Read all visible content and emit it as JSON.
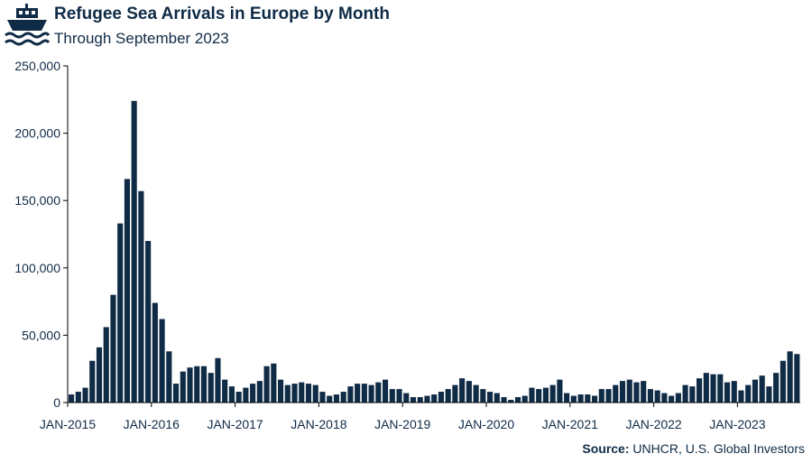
{
  "header": {
    "title": "Refugee Sea Arrivals in Europe by Month",
    "subtitle": "Through September 2023",
    "logo_icon": "ship-on-waves-icon"
  },
  "footer": {
    "source_label": "Source:",
    "source_text": "UNHCR, U.S. Global Investors"
  },
  "colors": {
    "bar": "#0f2b46",
    "text": "#0f2b46",
    "axis": "#000000"
  },
  "chart_data": {
    "type": "bar",
    "title": "Refugee Sea Arrivals in Europe by Month",
    "subtitle": "Through September 2023",
    "xlabel": "",
    "ylabel": "",
    "ylim": [
      0,
      250000
    ],
    "yticks": [
      0,
      50000,
      100000,
      150000,
      200000,
      250000
    ],
    "ytick_labels": [
      "0",
      "50,000",
      "100,000",
      "150,000",
      "200,000",
      "250,000"
    ],
    "xtick_labels": [
      "JAN-2015",
      "JAN-2016",
      "JAN-2017",
      "JAN-2018",
      "JAN-2019",
      "JAN-2020",
      "JAN-2021",
      "JAN-2022",
      "JAN-2023"
    ],
    "grid": false,
    "legend": "none",
    "start_month": "JAN-2015",
    "end_month": "SEP-2023",
    "values": [
      6000,
      8000,
      11000,
      31000,
      41000,
      56000,
      80000,
      133000,
      166000,
      224000,
      157000,
      120000,
      74000,
      62000,
      38000,
      14000,
      23000,
      26000,
      27000,
      27000,
      22000,
      33000,
      17000,
      12000,
      8000,
      11000,
      14000,
      16000,
      27000,
      29000,
      17000,
      13000,
      14000,
      15000,
      14000,
      13000,
      8000,
      5000,
      6000,
      8000,
      12000,
      14000,
      14000,
      13000,
      15000,
      17000,
      10000,
      10000,
      7000,
      4000,
      4000,
      5000,
      6000,
      8000,
      10000,
      13000,
      18000,
      16000,
      13000,
      10000,
      8000,
      7000,
      4000,
      2000,
      4000,
      5000,
      11000,
      10000,
      11000,
      13000,
      17000,
      7000,
      5000,
      6000,
      6000,
      5000,
      10000,
      10000,
      13000,
      16000,
      17000,
      15000,
      16000,
      10000,
      9000,
      7000,
      5000,
      7000,
      13000,
      12000,
      18000,
      22000,
      21000,
      21000,
      15000,
      16000,
      9000,
      13000,
      17000,
      20000,
      12000,
      22000,
      31000,
      38000,
      36000
    ]
  }
}
